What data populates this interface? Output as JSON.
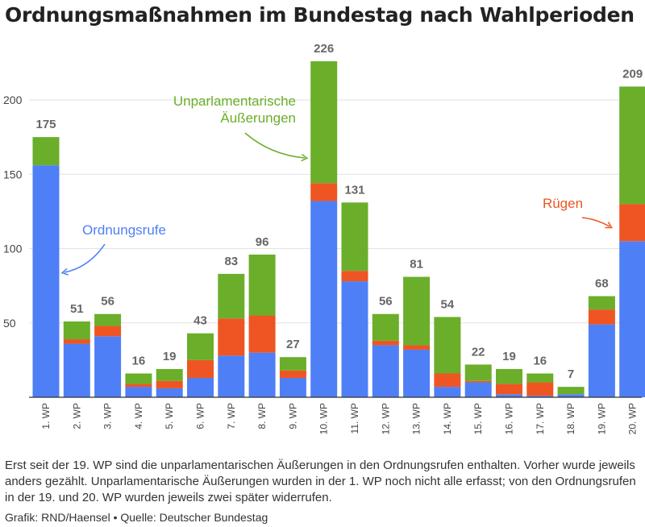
{
  "title": "Ordnungsmaßnahmen im Bundestag nach Wahlperioden",
  "note": "Erst seit der 19. WP sind die unparlamentarischen Äußerungen in den Ordnungsrufen enthalten. Vorher wurde jeweils anders gezählt. Unparlamentarische Äußerungen wurden in der 1. WP noch nicht alle erfasst; von den Ordnungsrufen in der 19. und 20. WP wurden jeweils zwei später widerrufen.",
  "source": "Grafik: RND/Haensel • Quelle: Deutscher Bundestag",
  "colors": {
    "ordnungsrufe": "#4f7ff6",
    "ruegen": "#ee5522",
    "unparlamentarisch": "#6aae2a",
    "grid": "#e2e2e2",
    "axis": "#333333"
  },
  "chart_data": {
    "type": "bar",
    "stacked": true,
    "categories": [
      "1. WP",
      "2. WP",
      "3. WP",
      "4. WP",
      "5. WP",
      "6. WP",
      "7. WP",
      "8. WP",
      "9. WP",
      "10. WP",
      "11. WP",
      "12. WP",
      "13. WP",
      "14. WP",
      "15. WP",
      "16. WP",
      "17. WP",
      "18. WP",
      "19. WP",
      "20. WP"
    ],
    "totals": [
      175,
      51,
      56,
      16,
      19,
      43,
      83,
      96,
      27,
      226,
      131,
      56,
      81,
      54,
      22,
      19,
      16,
      7,
      68,
      209
    ],
    "series": [
      {
        "name": "Ordnungsrufe",
        "values": [
          156,
          36,
          41,
          7,
          6,
          13,
          28,
          30,
          13,
          132,
          78,
          35,
          32,
          7,
          10,
          2,
          1,
          2,
          49,
          105
        ]
      },
      {
        "name": "Rügen",
        "values": [
          0,
          3,
          7,
          2,
          5,
          12,
          25,
          25,
          5,
          12,
          7,
          3,
          3,
          9,
          1,
          7,
          9,
          0,
          10,
          25
        ]
      },
      {
        "name": "Unparlamentarische Äußerungen",
        "values": [
          19,
          12,
          8,
          7,
          8,
          18,
          30,
          41,
          9,
          82,
          46,
          18,
          46,
          38,
          11,
          10,
          6,
          5,
          9,
          79
        ]
      }
    ],
    "annotations": {
      "ordnungsrufe": "Ordnungsrufe",
      "ruegen": "Rügen",
      "unparlamentarisch_line1": "Unparlamentarische",
      "unparlamentarisch_line2": "Äußerungen"
    },
    "yticks": [
      50,
      100,
      150,
      200
    ],
    "ylim": [
      0,
      236
    ],
    "grid": true,
    "xlabel": "",
    "ylabel": ""
  }
}
